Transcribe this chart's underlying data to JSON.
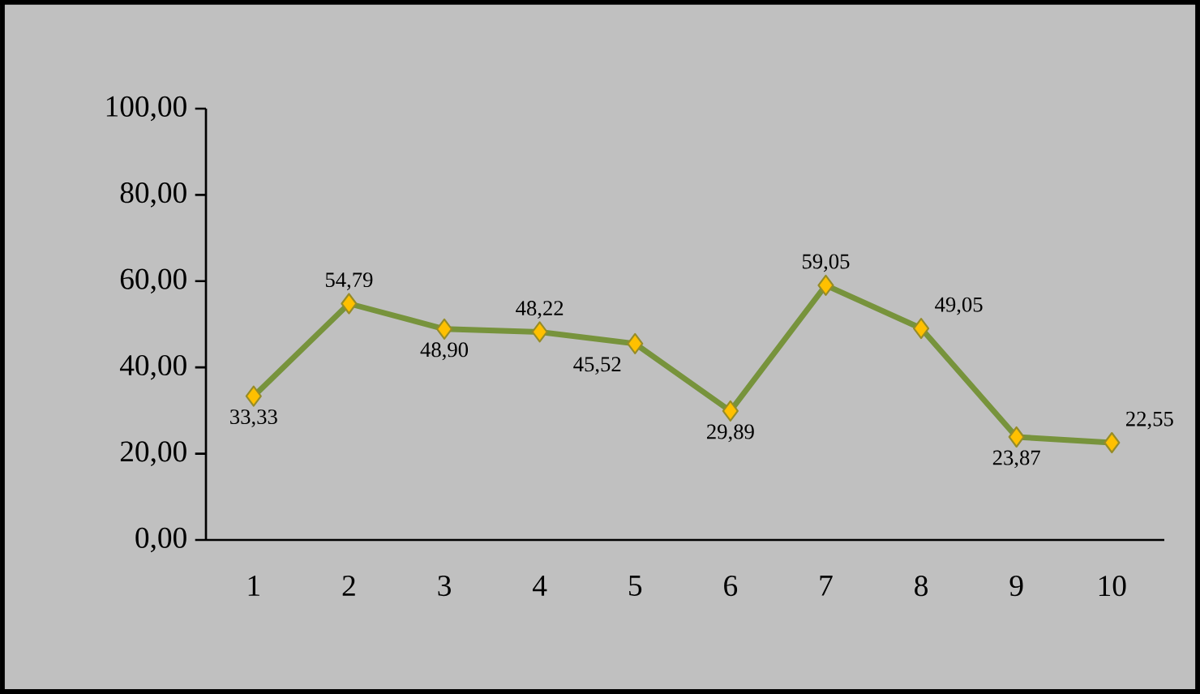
{
  "chart_data": {
    "type": "line",
    "categories": [
      "1",
      "2",
      "3",
      "4",
      "5",
      "6",
      "7",
      "8",
      "9",
      "10"
    ],
    "values": [
      33.33,
      54.79,
      48.9,
      48.22,
      45.52,
      29.89,
      59.05,
      49.05,
      23.87,
      22.55
    ],
    "value_labels": [
      "33,33",
      "54,79",
      "48,90",
      "48,22",
      "45,52",
      "29,89",
      "59,05",
      "49,05",
      "23,87",
      "22,55"
    ],
    "color": "#77933c",
    "marker": "diamond",
    "line_style": "solid",
    "ylim": [
      0,
      100
    ],
    "yticks": [
      {
        "value": 0,
        "label": "0,00"
      },
      {
        "value": 20,
        "label": "20,00"
      },
      {
        "value": 40,
        "label": "40,00"
      },
      {
        "value": 60,
        "label": "60,00"
      },
      {
        "value": 80,
        "label": "80,00"
      },
      {
        "value": 100,
        "label": "100,00"
      }
    ]
  }
}
